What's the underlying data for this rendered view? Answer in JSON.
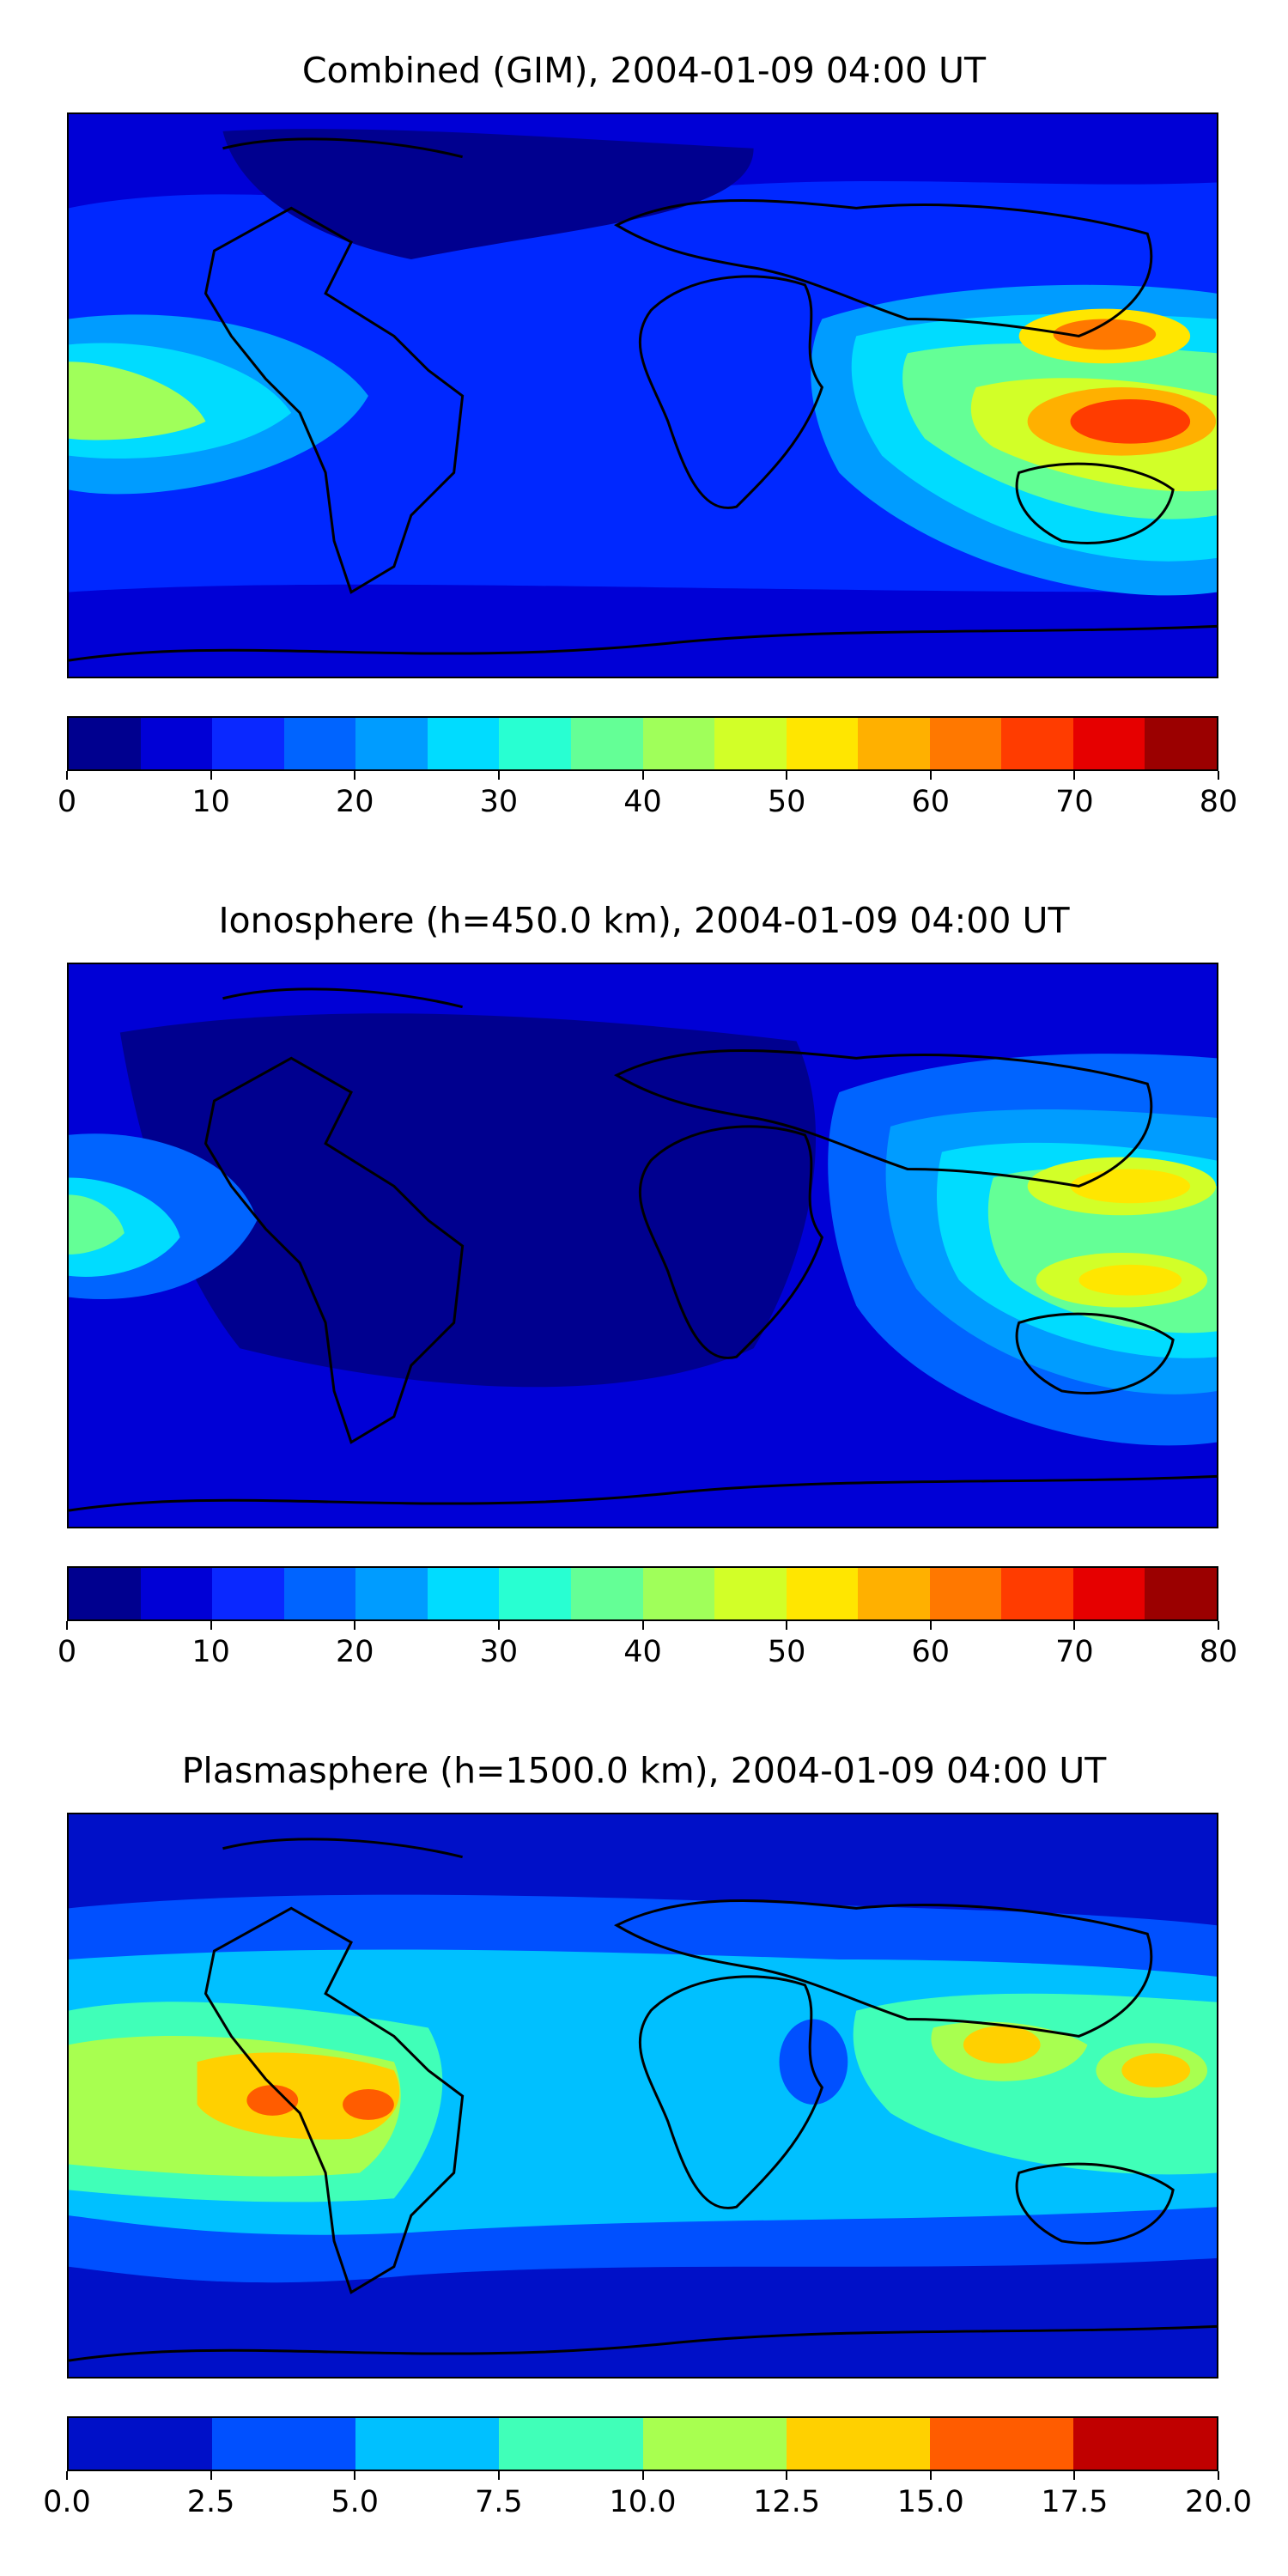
{
  "panels": [
    {
      "title": "Combined (GIM), 2004-01-09 04:00 UT",
      "colorbar_ticks": [
        "0",
        "10",
        "20",
        "30",
        "40",
        "50",
        "60",
        "70",
        "80"
      ],
      "colorbar_colors": [
        "#00008f",
        "#0000d6",
        "#0a28ff",
        "#0064ff",
        "#009cff",
        "#00dcff",
        "#28ffd2",
        "#64ff96",
        "#a0ff5a",
        "#d2ff28",
        "#ffe600",
        "#ffb000",
        "#ff7800",
        "#ff3c00",
        "#e60000",
        "#9b0000"
      ]
    },
    {
      "title": "Ionosphere  (h=450.0 km), 2004-01-09 04:00 UT",
      "colorbar_ticks": [
        "0",
        "10",
        "20",
        "30",
        "40",
        "50",
        "60",
        "70",
        "80"
      ],
      "colorbar_colors": [
        "#00008f",
        "#0000d6",
        "#0a28ff",
        "#0064ff",
        "#009cff",
        "#00dcff",
        "#28ffd2",
        "#64ff96",
        "#a0ff5a",
        "#d2ff28",
        "#ffe600",
        "#ffb000",
        "#ff7800",
        "#ff3c00",
        "#e60000",
        "#9b0000"
      ]
    },
    {
      "title": "Plasmasphere (h=1500.0 km), 2004-01-09 04:00 UT",
      "colorbar_ticks": [
        "0.0",
        "2.5",
        "5.0",
        "7.5",
        "10.0",
        "12.5",
        "15.0",
        "17.5",
        "20.0"
      ],
      "colorbar_colors": [
        "#0010c8",
        "#0050ff",
        "#00c0ff",
        "#40ffb8",
        "#a8ff50",
        "#ffd000",
        "#ff5c00",
        "#c00000"
      ]
    }
  ],
  "palette": {
    "outline": "#000000",
    "background": "#ffffff"
  }
}
